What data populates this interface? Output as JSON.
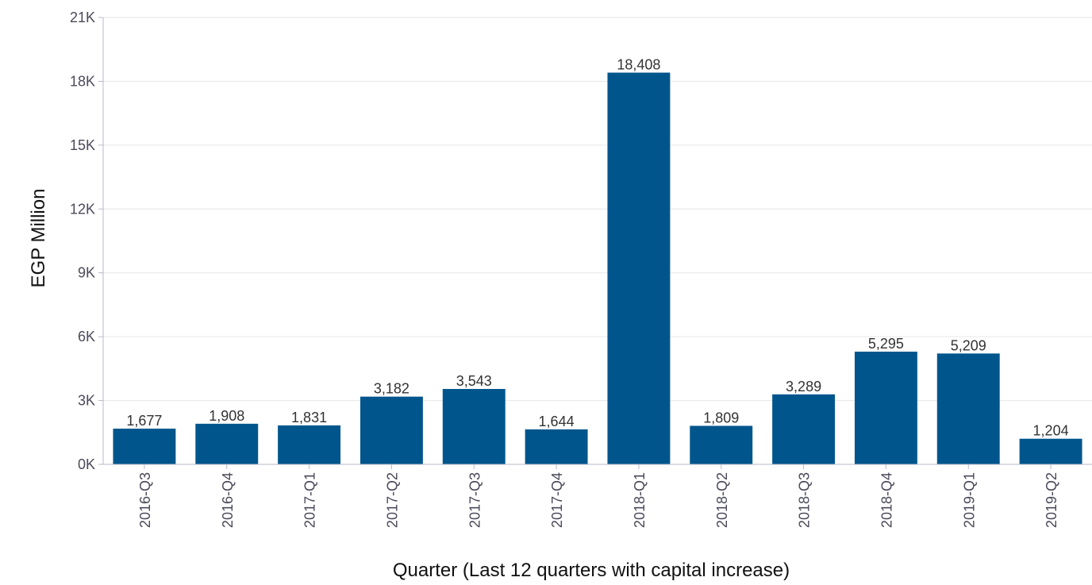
{
  "chart_data": {
    "type": "bar",
    "categories": [
      "2016-Q3",
      "2016-Q4",
      "2017-Q1",
      "2017-Q2",
      "2017-Q3",
      "2017-Q4",
      "2018-Q1",
      "2018-Q2",
      "2018-Q3",
      "2018-Q4",
      "2019-Q1",
      "2019-Q2"
    ],
    "values": [
      1677,
      1908,
      1831,
      3182,
      3543,
      1644,
      18408,
      1809,
      3289,
      5295,
      5209,
      1204
    ],
    "value_labels": [
      "1,677",
      "1,908",
      "1,831",
      "3,182",
      "3,543",
      "1,644",
      "18,408",
      "1,809",
      "3,289",
      "5,295",
      "5,209",
      "1,204"
    ],
    "xlabel": "Quarter (Last 12 quarters with capital increase)",
    "ylabel": "EGP Million",
    "ylim": [
      0,
      21000
    ],
    "y_ticks": [
      0,
      3000,
      6000,
      9000,
      12000,
      15000,
      18000,
      21000
    ],
    "y_tick_labels": [
      "0K",
      "3K",
      "6K",
      "9K",
      "12K",
      "15K",
      "18K",
      "21K"
    ],
    "grid": true,
    "legend": "none",
    "bar_color": "#00568c"
  }
}
